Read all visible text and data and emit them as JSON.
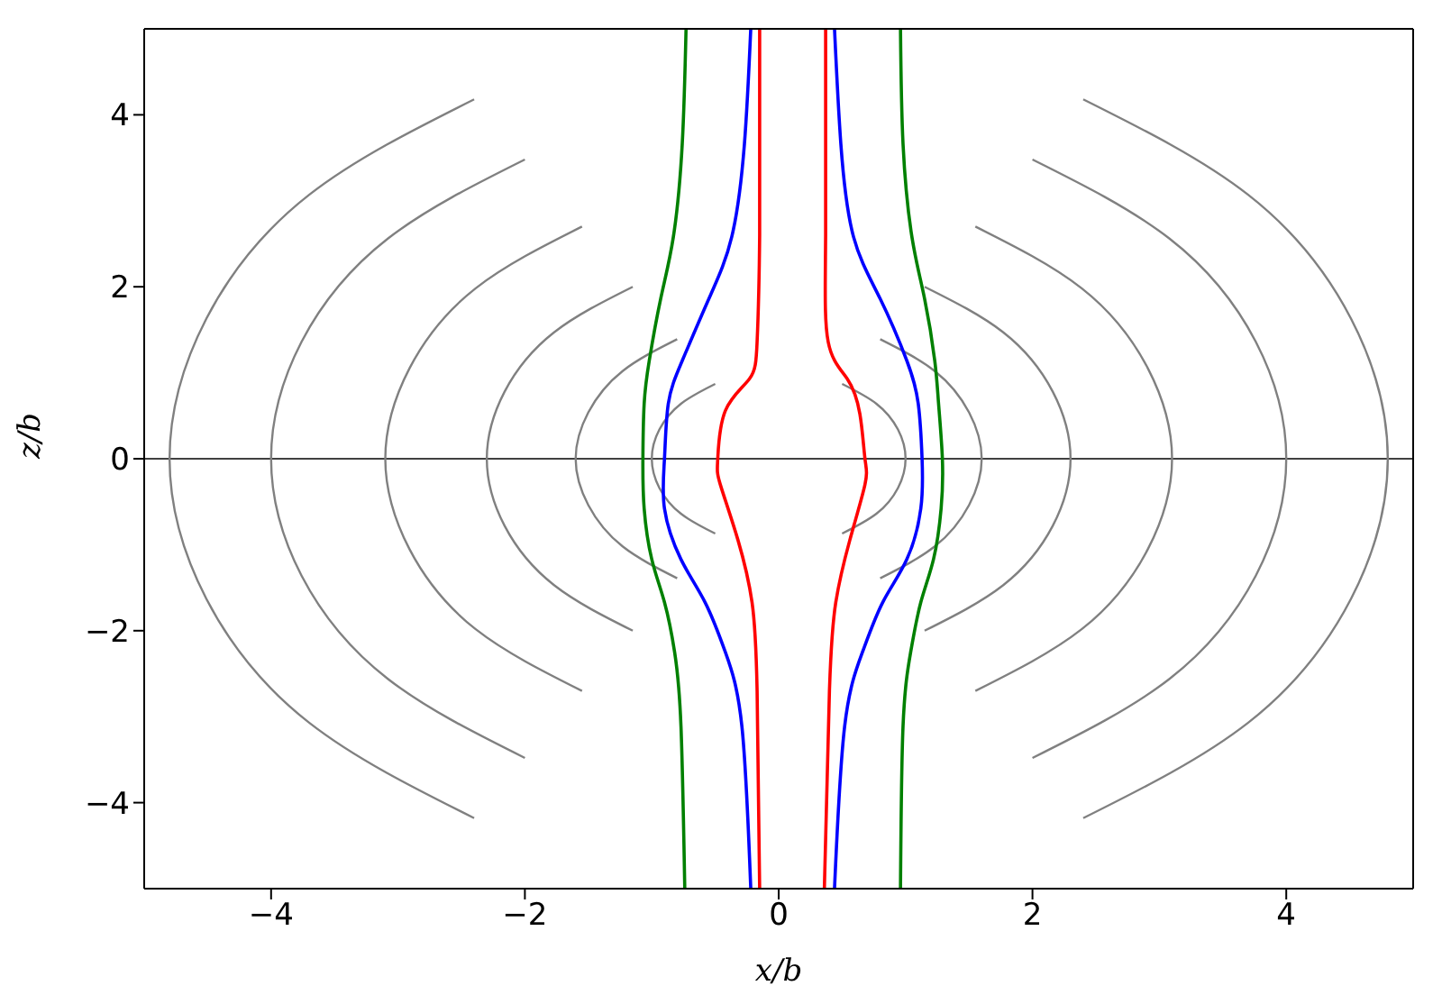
{
  "chart_data": {
    "type": "line",
    "xlabel": "x/b",
    "ylabel": "z/b",
    "xlim": [
      -5,
      5
    ],
    "ylim": [
      -5,
      5
    ],
    "xticks": [
      -4,
      -2,
      0,
      2,
      4
    ],
    "yticks": [
      -4,
      -2,
      0,
      2,
      4
    ],
    "marker": "none",
    "ref_lines": [
      {
        "axis": "y",
        "value": 0,
        "color": "#000000"
      }
    ],
    "series": [
      {
        "color": "#808080",
        "x": [
          -0.5,
          -0.77,
          -0.94,
          -1,
          -0.94,
          -0.77,
          -0.5
        ],
        "values": [
          -0.87,
          -0.64,
          -0.34,
          0,
          0.34,
          0.64,
          0.87
        ]
      },
      {
        "color": "#808080",
        "x": [
          -0.8,
          -1.23,
          -1.5,
          -1.6,
          -1.5,
          -1.23,
          -0.8
        ],
        "values": [
          -1.39,
          -1.02,
          -0.54,
          0,
          0.54,
          1.02,
          1.39
        ]
      },
      {
        "color": "#808080",
        "x": [
          -1.15,
          -1.77,
          -2.16,
          -2.3,
          -2.16,
          -1.77,
          -1.15
        ],
        "values": [
          -2,
          -1.47,
          -0.78,
          0,
          0.78,
          1.47,
          2
        ]
      },
      {
        "color": "#808080",
        "x": [
          -1.55,
          -2.39,
          -2.91,
          -3.1,
          -2.91,
          -2.39,
          -1.55
        ],
        "values": [
          -2.7,
          -1.98,
          -1.05,
          0,
          1.05,
          1.98,
          2.7
        ]
      },
      {
        "color": "#808080",
        "x": [
          -2,
          -3.08,
          -3.76,
          -4,
          -3.76,
          -3.08,
          -2
        ],
        "values": [
          -3.48,
          -2.56,
          -1.36,
          0,
          1.36,
          2.56,
          3.48
        ]
      },
      {
        "color": "#808080",
        "x": [
          -2.4,
          -3.7,
          -4.51,
          -4.8,
          -4.51,
          -3.7,
          -2.4
        ],
        "values": [
          -4.18,
          -3.07,
          -1.63,
          0,
          1.63,
          3.07,
          4.18
        ]
      },
      {
        "color": "#808080",
        "x": [
          0.5,
          0.77,
          0.94,
          1,
          0.94,
          0.77,
          0.5
        ],
        "values": [
          -0.87,
          -0.64,
          -0.34,
          0,
          0.34,
          0.64,
          0.87
        ]
      },
      {
        "color": "#808080",
        "x": [
          0.8,
          1.23,
          1.5,
          1.6,
          1.5,
          1.23,
          0.8
        ],
        "values": [
          -1.39,
          -1.02,
          -0.54,
          0,
          0.54,
          1.02,
          1.39
        ]
      },
      {
        "color": "#808080",
        "x": [
          1.15,
          1.77,
          2.16,
          2.3,
          2.16,
          1.77,
          1.15
        ],
        "values": [
          -2,
          -1.47,
          -0.78,
          0,
          0.78,
          1.47,
          2
        ]
      },
      {
        "color": "#808080",
        "x": [
          1.55,
          2.39,
          2.91,
          3.1,
          2.91,
          2.39,
          1.55
        ],
        "values": [
          -2.7,
          -1.98,
          -1.05,
          0,
          1.05,
          1.98,
          2.7
        ]
      },
      {
        "color": "#808080",
        "x": [
          2,
          3.08,
          3.76,
          4,
          3.76,
          3.08,
          2
        ],
        "values": [
          -3.48,
          -2.56,
          -1.36,
          0,
          1.36,
          2.56,
          3.48
        ]
      },
      {
        "color": "#808080",
        "x": [
          2.4,
          3.7,
          4.51,
          4.8,
          4.51,
          3.7,
          2.4
        ],
        "values": [
          -4.18,
          -3.07,
          -1.63,
          0,
          1.63,
          3.07,
          4.18
        ]
      },
      {
        "color": "#ff0000",
        "x": [
          -0.15,
          -0.15,
          -0.17,
          -0.23,
          -0.42,
          -0.48,
          -0.46,
          -0.32,
          -0.21,
          -0.17,
          -0.15
        ],
        "values": [
          5,
          2.6,
          1.36,
          0.93,
          0.56,
          0,
          -0.3,
          -0.95,
          -1.67,
          -2.7,
          -5
        ]
      },
      {
        "color": "#ff0000",
        "x": [
          0.37,
          0.37,
          0.39,
          0.54,
          0.64,
          0.68,
          0.68,
          0.56,
          0.45,
          0.4,
          0.36
        ],
        "values": [
          5,
          2.6,
          1.36,
          0.93,
          0.52,
          0,
          -0.3,
          -0.95,
          -1.67,
          -2.7,
          -5
        ]
      },
      {
        "color": "#0000ff",
        "x": [
          -0.22,
          -0.27,
          -0.37,
          -0.55,
          -0.76,
          -0.87,
          -0.9,
          -0.9,
          -0.77,
          -0.58,
          -0.42,
          -0.29,
          -0.22
        ],
        "values": [
          5,
          3.66,
          2.58,
          1.86,
          1.14,
          0.64,
          0,
          -0.58,
          -1.17,
          -1.67,
          -2.25,
          -3.11,
          -5
        ]
      },
      {
        "color": "#0000ff",
        "x": [
          0.44,
          0.49,
          0.59,
          0.8,
          1.01,
          1.1,
          1.13,
          1.12,
          1.01,
          0.82,
          0.66,
          0.52,
          0.44
        ],
        "values": [
          5,
          3.66,
          2.58,
          1.86,
          1.14,
          0.64,
          0,
          -0.58,
          -1.17,
          -1.67,
          -2.25,
          -3.11,
          -5
        ]
      },
      {
        "color": "#008000",
        "x": [
          -0.73,
          -0.76,
          -0.83,
          -0.93,
          -1.02,
          -1.06,
          -1.07,
          -1.06,
          -1,
          -0.9,
          -0.82,
          -0.77,
          -0.74
        ],
        "values": [
          5,
          3.66,
          2.58,
          1.86,
          1.14,
          0.64,
          0,
          -0.58,
          -1.17,
          -1.67,
          -2.25,
          -3.11,
          -5
        ]
      },
      {
        "color": "#008000",
        "x": [
          0.96,
          0.98,
          1.05,
          1.15,
          1.23,
          1.26,
          1.29,
          1.28,
          1.22,
          1.12,
          1.04,
          0.98,
          0.96
        ],
        "values": [
          5,
          3.66,
          2.58,
          1.86,
          1.14,
          0.64,
          0,
          -0.58,
          -1.17,
          -1.67,
          -2.25,
          -3.11,
          -5
        ]
      }
    ]
  }
}
